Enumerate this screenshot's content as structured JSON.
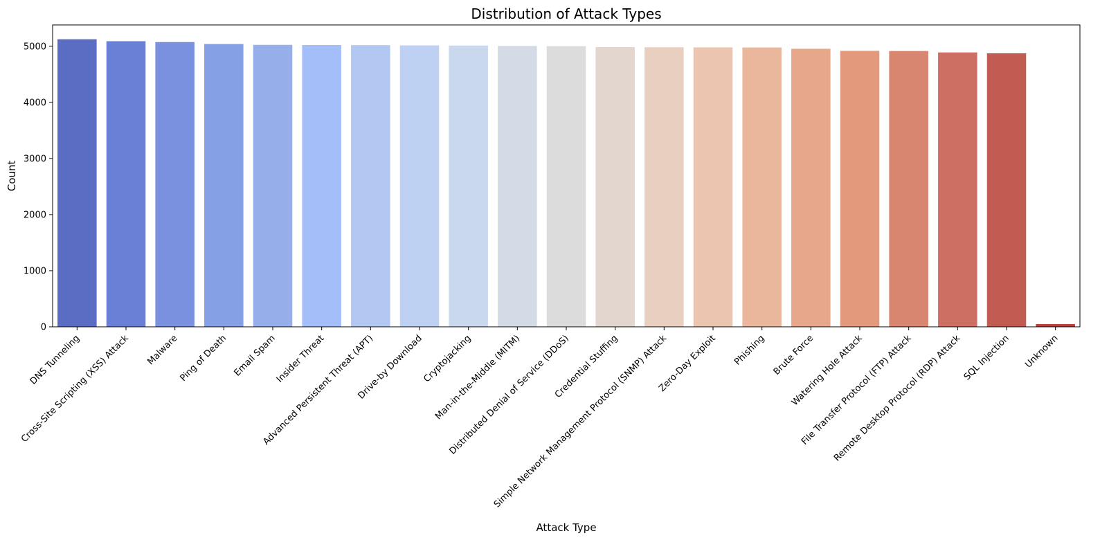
{
  "chart_data": {
    "type": "bar",
    "title": "Distribution of Attack Types",
    "xlabel": "Attack Type",
    "ylabel": "Count",
    "ylim": [
      0,
      5380
    ],
    "yticks": [
      0,
      1000,
      2000,
      3000,
      4000,
      5000
    ],
    "grid": false,
    "legend": "none",
    "categories": [
      "DNS Tunneling",
      "Cross-Site Scripting (XSS) Attack",
      "Malware",
      "Ping of Death",
      "Email Spam",
      "Insider Threat",
      "Advanced Persistent Threat (APT)",
      "Drive-by Download",
      "Cryptojacking",
      "Man-in-the-Middle (MITM)",
      "Distributed Denial of Service (DDoS)",
      "Credential Stuffing",
      "Simple Network Management Protocol (SNMP) Attack",
      "Zero-Day Exploit",
      "Phishing",
      "Brute Force",
      "Watering Hole Attack",
      "File Transfer Protocol (FTP) Attack",
      "Remote Desktop Protocol (RDP) Attack",
      "SQL Injection",
      "Unknown"
    ],
    "values": [
      5125,
      5090,
      5075,
      5040,
      5025,
      5022,
      5020,
      5015,
      5012,
      5005,
      5002,
      4985,
      4982,
      4980,
      4978,
      4955,
      4918,
      4915,
      4890,
      4875,
      50
    ],
    "colors": [
      "#5a6dc2",
      "#6a80d6",
      "#7a91e0",
      "#86a0e6",
      "#96afeb",
      "#a4befa",
      "#b2c8f2",
      "#bfd1f2",
      "#cad8ee",
      "#d4dbe6",
      "#dcdcdc",
      "#e2d6cf",
      "#e8cfc0",
      "#ebc5b0",
      "#eab79d",
      "#e6a78a",
      "#e39a7c",
      "#d98670",
      "#cd6f62",
      "#c25c52",
      "#b8413d"
    ]
  }
}
